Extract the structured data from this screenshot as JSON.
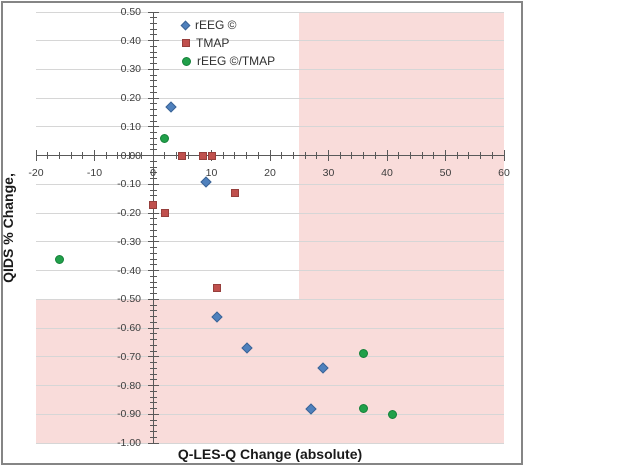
{
  "page": {
    "background": "#ffffff",
    "chart_border_color": "#858585"
  },
  "chart_data": {
    "type": "scatter",
    "title": "",
    "xlabel": "Q-LES-Q Change (absolute)",
    "ylabel": "QIDS % Change,",
    "xlim": [
      -20,
      60
    ],
    "ylim": [
      -1.0,
      0.5
    ],
    "x_tick_labels": [
      "-20",
      "-10",
      "0",
      "10",
      "20",
      "30",
      "40",
      "50",
      "60"
    ],
    "y_tick_labels": [
      "0.50",
      "0.40",
      "0.30",
      "0.20",
      "0.10",
      "0.00",
      "-0.10",
      "-0.20",
      "-0.30",
      "-0.40",
      "-0.50",
      "-0.60",
      "-0.70",
      "-0.80",
      "-0.90",
      "-1.00"
    ],
    "x_minor_step": 2,
    "y_minor_step": 0.02,
    "grid": "horizontal",
    "legend_position": "inside-top-center",
    "axis_color": "#595959",
    "gridline_color": "#d6d6d6",
    "tick_label_color": "#3d3d3d",
    "series": [
      {
        "name": "rEEG ©",
        "marker": "diamond",
        "color": "#4f81bd",
        "edge": "#3c6496",
        "points": [
          [
            3,
            0.17
          ],
          [
            9,
            -0.09
          ],
          [
            11,
            -0.56
          ],
          [
            16,
            -0.67
          ],
          [
            29,
            -0.74
          ],
          [
            27,
            -0.88
          ]
        ]
      },
      {
        "name": "TMAP",
        "marker": "square",
        "color": "#c0504d",
        "edge": "#963f3c",
        "points": [
          [
            5,
            0.0
          ],
          [
            8.5,
            0.0
          ],
          [
            10,
            0.0
          ],
          [
            0,
            -0.17
          ],
          [
            2,
            -0.2
          ],
          [
            14,
            -0.13
          ],
          [
            11,
            -0.46
          ]
        ]
      },
      {
        "name": "rEEG ©/TMAP",
        "marker": "circle",
        "color": "#21a04a",
        "edge": "#15813a",
        "points": [
          [
            2,
            0.06
          ],
          [
            -16,
            -0.36
          ],
          [
            36,
            -0.69
          ],
          [
            36,
            -0.88
          ],
          [
            41,
            -0.9
          ]
        ]
      }
    ],
    "highlight_regions": [
      {
        "name": "right-band",
        "x": [
          25,
          60
        ],
        "y": [
          -1.0,
          0.5
        ],
        "color": "#f9dcda"
      },
      {
        "name": "bottom-band",
        "x": [
          -20,
          60
        ],
        "y": [
          -1.0,
          -0.5
        ],
        "color": "#f9dcda"
      }
    ]
  }
}
